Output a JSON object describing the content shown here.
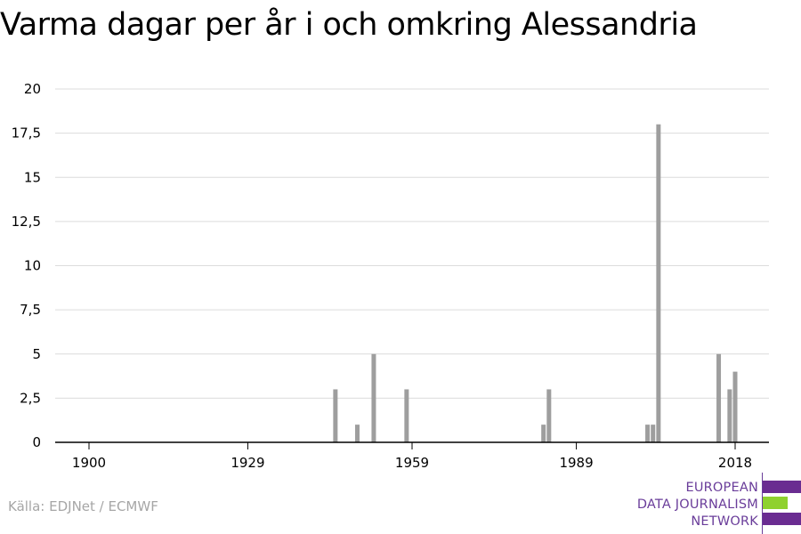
{
  "title": "Varma dagar per år i och omkring Alessandria",
  "source": "Källa: EDJNet / ECMWF",
  "logo": {
    "lines": [
      "EUROPEAN",
      "DATA JOURNALISM",
      "NETWORK"
    ],
    "colors": {
      "purple": "#6a2c91",
      "green": "#8fd12f"
    }
  },
  "chart_data": {
    "type": "bar",
    "title": "Varma dagar per år i och omkring Alessandria",
    "xlabel": "",
    "ylabel": "",
    "xlim": [
      1900,
      2020
    ],
    "ylim": [
      0,
      20
    ],
    "x_ticks": [
      1900,
      1929,
      1959,
      1989,
      2018
    ],
    "y_ticks": [
      0,
      2.5,
      5,
      7.5,
      10,
      12.5,
      15,
      17.5,
      20
    ],
    "y_tick_labels": [
      "0",
      "2,5",
      "5",
      "7,5",
      "10",
      "12,5",
      "15",
      "17,5",
      "20"
    ],
    "grid": true,
    "bar_color": "#9e9e9e",
    "x": [
      1945,
      1949,
      1952,
      1958,
      1983,
      1984,
      2002,
      2003,
      2004,
      2015,
      2017,
      2018
    ],
    "values": [
      3,
      1,
      5,
      3,
      1,
      3,
      1,
      1,
      18,
      5,
      3,
      4
    ]
  }
}
